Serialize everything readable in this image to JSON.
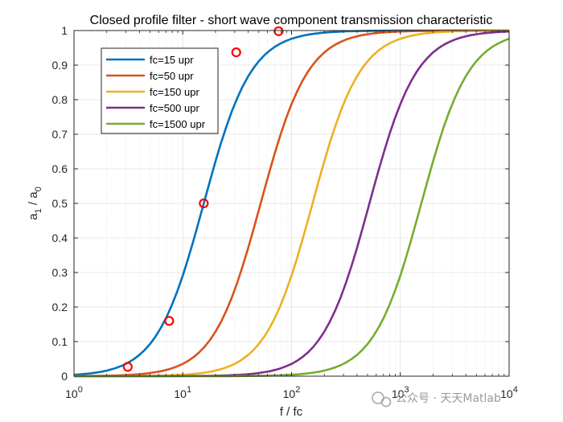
{
  "chart_data": {
    "type": "line",
    "title": "Closed profile filter - short wave component transmission characteristic",
    "xlabel": "f / fc",
    "ylabel": {
      "a": "a",
      "sub1": "1",
      "sep": " / a",
      "sub0": "0"
    },
    "xscale": "log",
    "xlim": [
      1,
      10000
    ],
    "ylim": [
      0,
      1
    ],
    "grid": true,
    "minor_grid": true,
    "x_ticks": [
      {
        "base": "10",
        "exp": "0"
      },
      {
        "base": "10",
        "exp": "1"
      },
      {
        "base": "10",
        "exp": "2"
      },
      {
        "base": "10",
        "exp": "3"
      },
      {
        "base": "10",
        "exp": "4"
      }
    ],
    "y_ticks": [
      "0",
      "0.1",
      "0.2",
      "0.3",
      "0.4",
      "0.5",
      "0.6",
      "0.7",
      "0.8",
      "0.9",
      "1"
    ],
    "legend_position": "top-left",
    "series": [
      {
        "name": "fc=15 upr",
        "color": "#0072BD",
        "center": 15.6,
        "width": 1.0
      },
      {
        "name": "fc=50 upr",
        "color": "#D95319",
        "center": 52,
        "width": 1.0
      },
      {
        "name": "fc=150 upr",
        "color": "#EDB120",
        "center": 156,
        "width": 1.0
      },
      {
        "name": "fc=500 upr",
        "color": "#7E2F8E",
        "center": 520,
        "width": 1.0
      },
      {
        "name": "fc=1500 upr",
        "color": "#77AC30",
        "center": 1560,
        "width": 1.0
      }
    ],
    "markers": {
      "color": "#FF0000",
      "points": [
        {
          "x": 3.12,
          "y": 0.027
        },
        {
          "x": 7.5,
          "y": 0.16
        },
        {
          "x": 15.6,
          "y": 0.5
        },
        {
          "x": 31,
          "y": 0.937
        },
        {
          "x": 76,
          "y": 0.998
        }
      ]
    }
  },
  "watermark": {
    "text": "公众号 · 天天Matlab"
  }
}
